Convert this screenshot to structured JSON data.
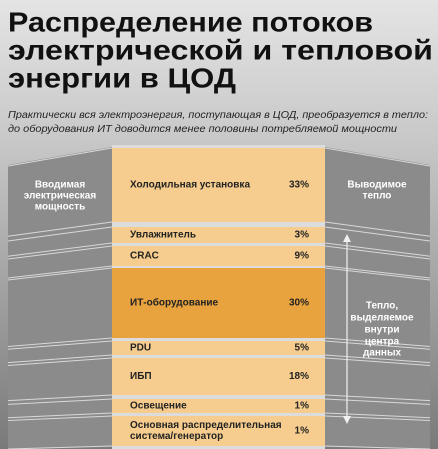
{
  "title": {
    "lines": [
      "Распределение потоков",
      "электрической и тепловой",
      "энергии в ЦОД"
    ]
  },
  "subtitle": {
    "lines": [
      "Практически вся электроэнергия, поступающая в ЦОД, преобразуется в тепло:",
      "до оборудования ИТ доводится менее половины потребляемой мощности"
    ]
  },
  "left_label": {
    "lines": [
      "Вводимая",
      "электрическая",
      "мощность"
    ]
  },
  "right_label": {
    "lines": [
      "Выводимое",
      "тепло"
    ]
  },
  "inner_label": {
    "lines": [
      "Тепло,",
      "выделяемое",
      "внутри",
      "центра",
      "данных"
    ]
  },
  "rows": [
    {
      "label": [
        "Холодильная установка"
      ],
      "value": "33%"
    },
    {
      "label": [
        "Увлажнитель"
      ],
      "value": "3%"
    },
    {
      "label": [
        "CRAC"
      ],
      "value": "9%"
    },
    {
      "label": [
        "ИТ-оборудование"
      ],
      "value": "30%"
    },
    {
      "label": [
        "PDU"
      ],
      "value": "5%"
    },
    {
      "label": [
        "ИБП"
      ],
      "value": "18%"
    },
    {
      "label": [
        "Освещение"
      ],
      "value": "1%"
    },
    {
      "label": [
        "Основная распределительная",
        "система/генератор"
      ],
      "value": "1%"
    }
  ]
}
